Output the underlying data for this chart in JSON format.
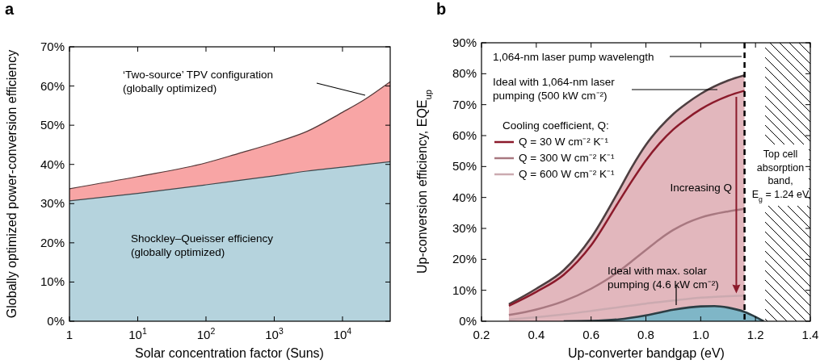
{
  "chart_data": [
    {
      "type": "area",
      "title": "a",
      "xlabel": "Solar concentration factor (Suns)",
      "ylabel": "Globally optimized power-conversion efficiency",
      "log": "x",
      "grid": false,
      "legend": false,
      "xlim": [
        1,
        50000
      ],
      "xticks": [
        1,
        {
          "value": 10,
          "label": "10$^{1}$"
        },
        {
          "value": 100,
          "label": "10$^{2}$"
        },
        {
          "value": 1000,
          "label": "10$^{3}$"
        },
        {
          "value": 10000,
          "label": "10$^{4}$"
        }
      ],
      "ylim": [
        0,
        70
      ],
      "yticks": [
        {
          "value": 0,
          "label": "0%"
        },
        {
          "value": 10,
          "label": "10%"
        },
        {
          "value": 20,
          "label": "20%"
        },
        {
          "value": 30,
          "label": "30%"
        },
        {
          "value": 40,
          "label": "40%"
        },
        {
          "value": 50,
          "label": "50%"
        },
        {
          "value": 60,
          "label": "60%"
        },
        {
          "value": 70,
          "label": "70%"
        }
      ],
      "x": [
        1,
        10,
        100,
        300,
        1000,
        3000,
        10000,
        20000,
        50000
      ],
      "series": [
        {
          "color": "#f8a5a5",
          "values": [
            33.8,
            36.9,
            40.4,
            42.8,
            45.5,
            48.4,
            53.3,
            56.3,
            61.1
          ]
        },
        {
          "color": "#b5d3dd",
          "values": [
            30.7,
            32.6,
            34.8,
            35.9,
            37.1,
            38.3,
            39.3,
            39.9,
            40.7
          ]
        }
      ],
      "annotations": [
        "‘Two-source’ TPV configuration (globally optimized)",
        "Shockley–Queisser efficiency (globally optimized)"
      ]
    },
    {
      "type": "line",
      "title": "b",
      "xlabel": "Up-converter bandgap (eV)",
      "ylabel": "Up-conversion efficiency, EQE$_{up}$",
      "grid": false,
      "legend": "top left",
      "legend_title": "Cooling coefficient, Q:",
      "xlim": [
        0.2,
        1.4
      ],
      "xticks": [
        {
          "value": 0.2,
          "label": "0.2"
        },
        {
          "value": 0.4,
          "label": "0.4"
        },
        {
          "value": 0.6,
          "label": "0.6"
        },
        {
          "value": 0.8,
          "label": "0.8"
        },
        {
          "value": 1.0,
          "label": "1.0"
        },
        {
          "value": 1.2,
          "label": "1.2"
        },
        {
          "value": 1.4,
          "label": "1.4"
        }
      ],
      "ylim": [
        0,
        90
      ],
      "yticks": [
        {
          "value": 0,
          "label": "0%"
        },
        {
          "value": 10,
          "label": "10%"
        },
        {
          "value": 20,
          "label": "20%"
        },
        {
          "value": 30,
          "label": "30%"
        },
        {
          "value": 40,
          "label": "40%"
        },
        {
          "value": 50,
          "label": "50%"
        },
        {
          "value": 60,
          "label": "60%"
        },
        {
          "value": 70,
          "label": "70%"
        },
        {
          "value": 80,
          "label": "80%"
        },
        {
          "value": 90,
          "label": "90%"
        }
      ],
      "x": [
        0.3,
        0.4,
        0.5,
        0.6,
        0.7,
        0.75,
        0.8,
        0.85,
        0.9,
        0.95,
        1.0,
        1.1,
        1.16
      ],
      "series": [
        {
          "type": "area",
          "color": "#e2b7bd",
          "values": [
            5.5,
            10.5,
            16.5,
            27,
            42,
            50,
            57,
            62.5,
            67,
            70.5,
            73.5,
            77.8,
            79.5
          ]
        },
        {
          "name": "Q = 30 W cm⁻² K⁻¹",
          "color": "#8b1a2b",
          "values": [
            5,
            9.5,
            15,
            24.5,
            38.5,
            45.5,
            52,
            57.5,
            62,
            65.5,
            68.5,
            72.8,
            74.5
          ]
        },
        {
          "name": "Q = 300 W cm⁻² K⁻¹",
          "color": "#a87880",
          "values": [
            2,
            3.8,
            6.5,
            10.5,
            16,
            19.5,
            23,
            26.5,
            29.5,
            31.8,
            33.5,
            35.5,
            36.3
          ]
        },
        {
          "name": "Q = 600 W cm⁻² K⁻¹",
          "color": "#cbaab0",
          "values": [
            0.5,
            1.3,
            2.2,
            3.3,
            4.5,
            5.1,
            5.7,
            6.2,
            6.7,
            7.2,
            7.6,
            8.1,
            8.3
          ]
        },
        {
          "type": "area",
          "color": "#7fb6c7",
          "x": [
            0.5,
            0.6,
            0.7,
            0.8,
            0.9,
            1.0,
            1.05,
            1.1,
            1.16,
            1.2,
            1.23
          ],
          "values": [
            0,
            0.1,
            0.6,
            1.9,
            3.7,
            4.8,
            4.9,
            4.4,
            3.0,
            1.4,
            0
          ]
        }
      ],
      "ref_lines": [
        {
          "axis": "x",
          "value": 1.16,
          "color": "#000000",
          "line_style": "dashed"
        }
      ],
      "bands": [
        {
          "axis": "x",
          "from": 1.235,
          "to": 1.4,
          "label": "Top cell absorption band, E$_{g}$ = 1.24 eV",
          "color": "#000000"
        }
      ],
      "annotations": [
        "Ideal with 1,064-nm laser pumping (500 kW cm⁻²)",
        "Ideal with max. solar pumping (4.6 kW cm⁻²)",
        "Increasing Q",
        "1,064-nm laser pump wavelength"
      ]
    }
  ]
}
